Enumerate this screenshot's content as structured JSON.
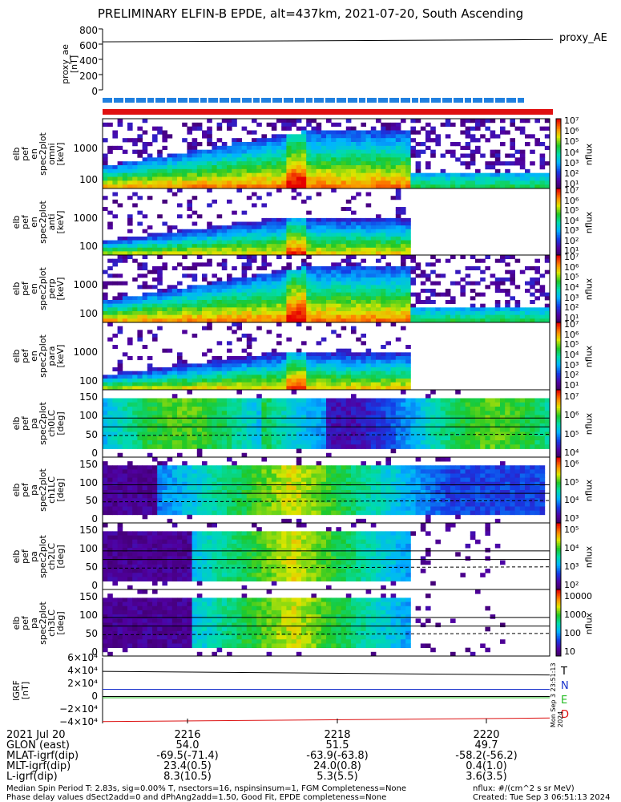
{
  "title": "PRELIMINARY ELFIN-B EPDE, alt=437km, 2021-07-20, South Ascending",
  "proxy_ae": {
    "legend": "proxy_AE",
    "ylabel_lines": [
      "proxy_ae",
      "[nT]"
    ],
    "yticks": [
      "800",
      "600",
      "400",
      "200",
      "0"
    ]
  },
  "spectra_panels": [
    {
      "ylabel": "elb\npef\nen\nspec2plot\nomni\n[keV]",
      "yticks": [
        "1000",
        "100"
      ],
      "cbar_ticks": [
        "10⁷",
        "10⁶",
        "10⁵",
        "10⁴",
        "10³",
        "10²",
        "10¹"
      ]
    },
    {
      "ylabel": "elb\npef\nen\nspec2plot\nanti\n[keV]",
      "yticks": [
        "1000",
        "100"
      ],
      "cbar_ticks": [
        "10⁷",
        "10⁶",
        "10⁵",
        "10⁴",
        "10³",
        "10²",
        "10¹"
      ]
    },
    {
      "ylabel": "elb\npef\nen\nspec2plot\nperp\n[keV]",
      "yticks": [
        "1000",
        "100"
      ],
      "cbar_ticks": [
        "10⁷",
        "10⁶",
        "10⁵",
        "10⁴",
        "10³",
        "10²",
        "10¹"
      ]
    },
    {
      "ylabel": "elb\npef\nen\nspec2plot\npara\n[keV]",
      "yticks": [
        "1000",
        "100"
      ],
      "cbar_ticks": [
        "10⁷",
        "10⁶",
        "10⁵",
        "10⁴",
        "10³",
        "10²",
        "10¹"
      ]
    }
  ],
  "pa_panels": [
    {
      "ylabel": "elb\npef\npa\nspec2plot\nch0LC\n[deg]",
      "yticks": [
        "150",
        "100",
        "50",
        "0"
      ],
      "cbar_ticks": [
        "10⁷",
        "10⁶",
        "10⁵",
        "10⁴"
      ]
    },
    {
      "ylabel": "elb\npef\npa\nspec2plot\nch1LC\n[deg]",
      "yticks": [
        "150",
        "100",
        "50",
        "0"
      ],
      "cbar_ticks": [
        "10⁶",
        "10⁵",
        "10⁴",
        "10³"
      ]
    },
    {
      "ylabel": "elb\npef\npa\nspec2plot\nch2LC\n[deg]",
      "yticks": [
        "150",
        "100",
        "50",
        "0"
      ],
      "cbar_ticks": [
        "10⁵",
        "10⁴",
        "10³",
        "10²"
      ]
    },
    {
      "ylabel": "elb\npef\npa\nspec2plot\nch3LC\n[deg]",
      "yticks": [
        "150",
        "100",
        "50",
        "0"
      ],
      "cbar_ticks": [
        "10000",
        "1000",
        "100",
        "10"
      ]
    }
  ],
  "nflux_label": "nflux",
  "igrf": {
    "ylabel_lines": [
      "IGRF",
      "[nT]"
    ],
    "yticks": [
      "6×10⁴",
      "4×10⁴",
      "2×10⁴",
      "0",
      "−2×10⁴",
      "−4×10⁴"
    ],
    "legend": [
      {
        "label": "T",
        "color": "#000000"
      },
      {
        "label": "N",
        "color": "#1a33cc"
      },
      {
        "label": "E",
        "color": "#22bb22"
      },
      {
        "label": "D",
        "color": "#dd1111"
      }
    ],
    "side_text": "Mon Sep  3 23:51:13 2024"
  },
  "bars": {
    "top_color": "#2080e0",
    "bottom_color": "#e01010"
  },
  "chart_data": {
    "type": "heatmap",
    "title": "PRELIMINARY ELFIN-B EPDE, alt=437km, 2021-07-20, South Ascending",
    "x_ticks": [
      "2216",
      "2218",
      "2220"
    ],
    "proxy_ae": {
      "name": "proxy_AE",
      "ylim": [
        0,
        800
      ],
      "values_start_end": [
        630,
        660
      ]
    },
    "energy_ylim_keV": [
      60,
      5000
    ],
    "pa_ylim_deg": [
      0,
      180
    ],
    "igrf_ylim": [
      -45000,
      65000
    ],
    "colorscale": "rainbow"
  },
  "footer": {
    "rows": [
      {
        "label": "2021 Jul 20",
        "values": [
          "2216",
          "2218",
          "2220"
        ]
      },
      {
        "label": "GLON (east)",
        "values": [
          "54.0",
          "51.5",
          "49.7"
        ]
      },
      {
        "label": "MLAT-igrf(dip)",
        "values": [
          "-69.5(-71.4)",
          "-63.9(-63.8)",
          "-58.2(-56.2)"
        ]
      },
      {
        "label": "MLT-igrf(dip)",
        "values": [
          "23.4(0.5)",
          "24.0(0.8)",
          "0.4(1.0)"
        ]
      },
      {
        "label": "L-igrf(dip)",
        "values": [
          "8.3(10.5)",
          "5.3(5.5)",
          "3.6(3.5)"
        ]
      }
    ],
    "line1": "Median Spin Period T: 2.83s, sig=0.00% T, nsectors=16, nspinsinsum=1, FGM Completeness=None",
    "line2": "Phase delay values dSect2add=0 and dPhAng2add=1.50, Good Fit, EPDE completeness=None",
    "units": "nflux: #/(cm^2 s sr MeV)",
    "created": "Created: Tue Sep  3 06:51:13 2024"
  }
}
